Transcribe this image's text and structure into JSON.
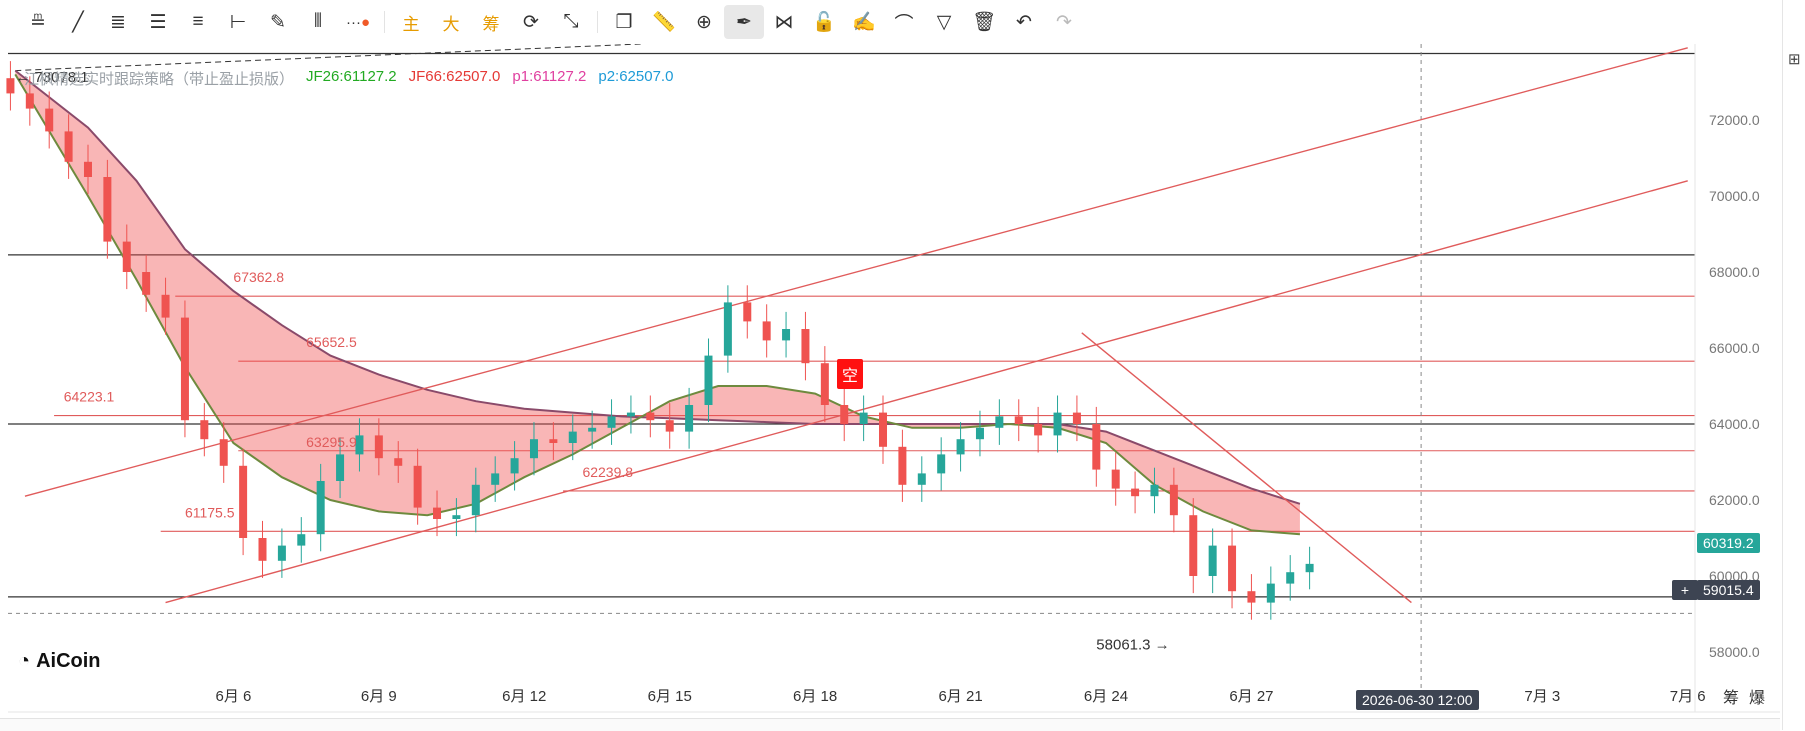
{
  "toolbar": {
    "tools": [
      "ruler",
      "trend-line",
      "parallel-lines",
      "horizontal-lines",
      "horizontal-line",
      "ray",
      "brush",
      "fib",
      "more",
      "main",
      "big",
      "chips",
      "refresh",
      "measure",
      "copy",
      "ruler2",
      "zoom",
      "pen",
      "link",
      "lock",
      "edit",
      "magnet",
      "filter",
      "trash",
      "undo",
      "redo"
    ],
    "main_label": "主",
    "big_label": "大",
    "chips_label": "筹"
  },
  "legend": {
    "indicator_name": "江枫精选实时跟踪策略（带止盈止损版）",
    "jf26": "JF26:61127.2",
    "jf66": "JF66:62507.0",
    "p1": "p1:61127.2",
    "p2": "p2:62507.0",
    "colors": {
      "jf26": "#22aa22",
      "jf66": "#e53935",
      "p1": "#e040a0",
      "p2": "#1e9bd7"
    }
  },
  "price_labels": {
    "current": "60319.2",
    "crosshair": "59015.4",
    "high_marker": "73078.1",
    "low_marker": "58061.3",
    "time_crosshair": "2026-06-30 12:00",
    "signal": "空"
  },
  "level_labels": [
    "67362.8",
    "65652.5",
    "64223.1",
    "63295.9",
    "62239.8",
    "61175.5"
  ],
  "right_panel": {
    "chips_tab": "筹",
    "burst_tab": "爆"
  },
  "logo_text": "AiCoin",
  "chart_data": {
    "type": "candlestick",
    "title": "",
    "xlabel": "",
    "ylabel": "",
    "y_range": [
      57000,
      74000
    ],
    "y_ticks": [
      58000,
      60000,
      62000,
      64000,
      66000,
      68000,
      70000,
      72000
    ],
    "y_tick_labels": [
      "58000.0",
      "60000.0",
      "62000.0",
      "64000.0",
      "66000.0",
      "68000.0",
      "70000.0",
      "72000.0"
    ],
    "x_tick_labels": [
      "6月 6",
      "6月 9",
      "6月 12",
      "6月 15",
      "6月 18",
      "6月 21",
      "6月 24",
      "6月 27",
      "7月 3",
      "7月 6"
    ],
    "x_ticks_day": [
      6,
      9,
      12,
      15,
      18,
      21,
      24,
      27,
      33,
      36
    ],
    "x_range_day": [
      1.35,
      36.15
    ],
    "horizontal_levels": [
      67362.8,
      65652.5,
      64223.1,
      63295.9,
      62239.8,
      61175.5
    ],
    "black_levels": [
      73750,
      68450,
      64000,
      59450
    ],
    "crosshair_price": 59015.4,
    "crosshair_day": 30.5,
    "close_series": [
      [
        1.4,
        72700
      ],
      [
        1.8,
        72300
      ],
      [
        2.2,
        71700
      ],
      [
        2.6,
        70900
      ],
      [
        3.0,
        70500
      ],
      [
        3.4,
        68800
      ],
      [
        3.8,
        68000
      ],
      [
        4.2,
        67400
      ],
      [
        4.6,
        66800
      ],
      [
        5.0,
        64100
      ],
      [
        5.4,
        63600
      ],
      [
        5.8,
        62900
      ],
      [
        6.2,
        61000
      ],
      [
        6.6,
        60400
      ],
      [
        7.0,
        60800
      ],
      [
        7.4,
        61100
      ],
      [
        7.8,
        62500
      ],
      [
        8.2,
        63200
      ],
      [
        8.6,
        63700
      ],
      [
        9.0,
        63100
      ],
      [
        9.4,
        62900
      ],
      [
        9.8,
        61800
      ],
      [
        10.2,
        61500
      ],
      [
        10.6,
        61600
      ],
      [
        11.0,
        62400
      ],
      [
        11.4,
        62700
      ],
      [
        11.8,
        63100
      ],
      [
        12.2,
        63600
      ],
      [
        12.6,
        63500
      ],
      [
        13.0,
        63800
      ],
      [
        13.4,
        63900
      ],
      [
        13.8,
        64200
      ],
      [
        14.2,
        64300
      ],
      [
        14.6,
        64100
      ],
      [
        15.0,
        63800
      ],
      [
        15.4,
        64500
      ],
      [
        15.8,
        65800
      ],
      [
        16.2,
        67200
      ],
      [
        16.6,
        66700
      ],
      [
        17.0,
        66200
      ],
      [
        17.4,
        66500
      ],
      [
        17.8,
        65600
      ],
      [
        18.2,
        64500
      ],
      [
        18.6,
        64000
      ],
      [
        19.0,
        64300
      ],
      [
        19.4,
        63400
      ],
      [
        19.8,
        62400
      ],
      [
        20.2,
        62700
      ],
      [
        20.6,
        63200
      ],
      [
        21.0,
        63600
      ],
      [
        21.4,
        63900
      ],
      [
        21.8,
        64200
      ],
      [
        22.2,
        64000
      ],
      [
        22.6,
        63700
      ],
      [
        23.0,
        64300
      ],
      [
        23.4,
        64000
      ],
      [
        23.8,
        62800
      ],
      [
        24.2,
        62300
      ],
      [
        24.6,
        62100
      ],
      [
        25.0,
        62400
      ],
      [
        25.4,
        61600
      ],
      [
        25.8,
        60000
      ],
      [
        26.2,
        60800
      ],
      [
        26.6,
        59600
      ],
      [
        27.0,
        59300
      ],
      [
        27.4,
        59800
      ],
      [
        27.8,
        60100
      ],
      [
        28.2,
        60319.2
      ]
    ],
    "cloud_fast": [
      [
        1.5,
        73300
      ],
      [
        3,
        71800
      ],
      [
        4,
        70400
      ],
      [
        5,
        68600
      ],
      [
        6,
        67500
      ],
      [
        7,
        66600
      ],
      [
        8,
        65800
      ],
      [
        9,
        65300
      ],
      [
        10,
        64900
      ],
      [
        11,
        64600
      ],
      [
        12,
        64400
      ],
      [
        13,
        64300
      ],
      [
        14,
        64200
      ],
      [
        15,
        64150
      ],
      [
        16,
        64100
      ],
      [
        17,
        64050
      ],
      [
        18,
        64000
      ],
      [
        19,
        64000
      ],
      [
        20,
        64000
      ],
      [
        21,
        64000
      ],
      [
        22,
        64000
      ],
      [
        23,
        64000
      ],
      [
        24,
        63800
      ],
      [
        25,
        63300
      ],
      [
        26,
        62800
      ],
      [
        27,
        62300
      ],
      [
        28,
        61900
      ]
    ],
    "cloud_slow": [
      [
        1.5,
        73200
      ],
      [
        3,
        70000
      ],
      [
        4,
        67800
      ],
      [
        5,
        65500
      ],
      [
        6,
        63500
      ],
      [
        7,
        62600
      ],
      [
        8,
        62000
      ],
      [
        9,
        61700
      ],
      [
        10,
        61600
      ],
      [
        11,
        61900
      ],
      [
        12,
        62600
      ],
      [
        13,
        63200
      ],
      [
        14,
        63900
      ],
      [
        15,
        64600
      ],
      [
        16,
        65000
      ],
      [
        17,
        65000
      ],
      [
        18,
        64800
      ],
      [
        19,
        64200
      ],
      [
        20,
        63900
      ],
      [
        21,
        63900
      ],
      [
        22,
        64000
      ],
      [
        23,
        63900
      ],
      [
        24,
        63500
      ],
      [
        25,
        62400
      ],
      [
        26,
        61700
      ],
      [
        27,
        61200
      ],
      [
        28,
        61100
      ]
    ],
    "trend_lines": [
      {
        "from": [
          1.7,
          62100
        ],
        "to": [
          36.0,
          73900
        ],
        "color": "#e05b5b"
      },
      {
        "from": [
          4.6,
          59300
        ],
        "to": [
          36.0,
          70400
        ],
        "color": "#e05b5b"
      },
      {
        "from": [
          23.5,
          66400
        ],
        "to": [
          30.3,
          59300
        ],
        "color": "#e05b5b"
      }
    ],
    "grid": false,
    "legend_position": "top-left"
  }
}
